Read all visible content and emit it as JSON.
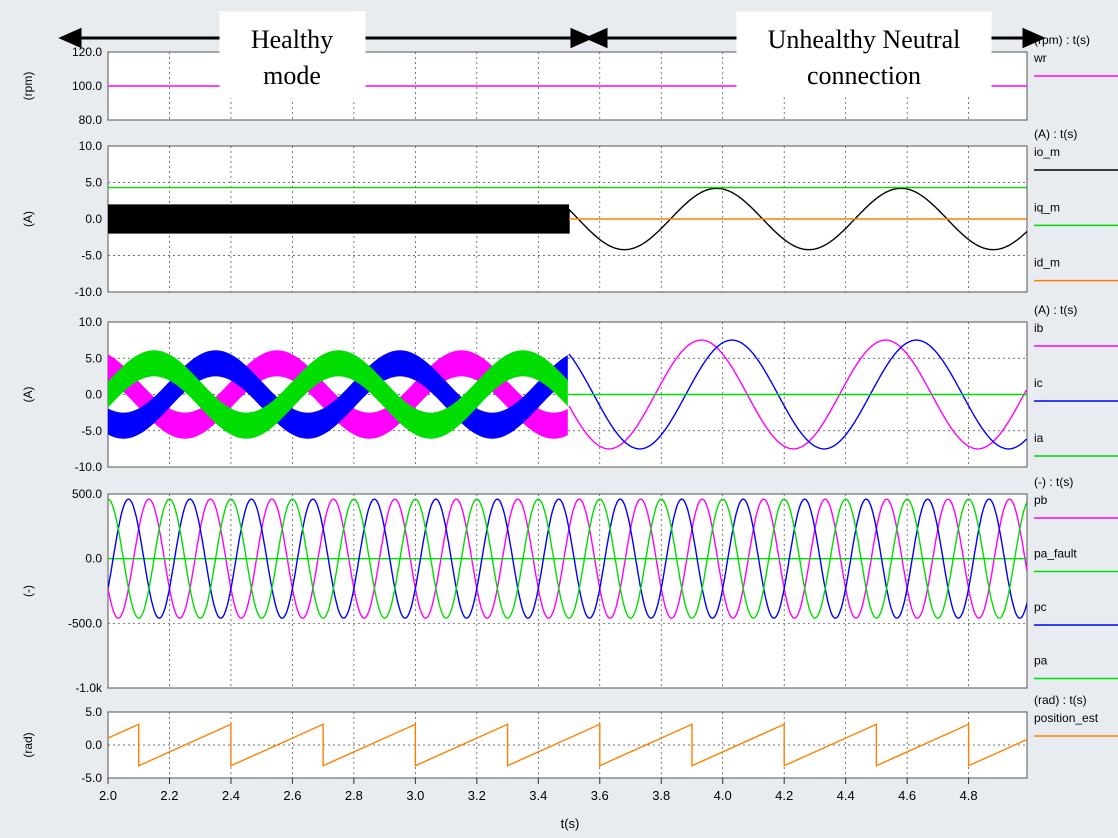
{
  "annotations": {
    "left": {
      "line1": "Healthy",
      "line2": "mode"
    },
    "right": {
      "line1": "Unhealthy Neutral",
      "line2": "connection"
    }
  },
  "x_axis": {
    "label": "t(s)",
    "ticks": [
      "2.0",
      "2.2",
      "2.4",
      "2.6",
      "2.8",
      "3.0",
      "3.2",
      "3.4",
      "3.6",
      "3.8",
      "4.0",
      "4.2",
      "4.4",
      "4.6",
      "4.8"
    ]
  },
  "colors": {
    "magenta": "#ff00ff",
    "black": "#000000",
    "green": "#00dd00",
    "orange": "#ff8000",
    "blue": "#0000ff"
  },
  "chart_data": [
    {
      "type": "line",
      "ylabel": "(rpm)",
      "unit_label": "(rpm) : t(s)",
      "ylim": [
        80,
        120
      ],
      "yticks": [
        "120.0",
        "100.0",
        "80.0"
      ],
      "series": [
        {
          "name": "wr",
          "color": "#ff00ff",
          "x": [
            2.0,
            4.99
          ],
          "y": [
            100,
            100
          ]
        }
      ]
    },
    {
      "type": "line",
      "ylabel": "(A)",
      "unit_label": "(A) : t(s)",
      "ylim": [
        -10,
        10
      ],
      "yticks": [
        "10.0",
        "5.0",
        "0.0",
        "-5.0",
        "-10.0"
      ],
      "healthy_until": 3.5,
      "series": [
        {
          "name": "io_m",
          "color": "#000000",
          "healthy_band": [
            -2,
            2
          ],
          "after": {
            "type": "sine",
            "amplitude": 4.2,
            "period": 0.6,
            "peak_at": 3.98
          }
        },
        {
          "name": "iq_m",
          "color": "#00dd00",
          "x": [
            2.0,
            4.99
          ],
          "y": [
            4.3,
            4.3
          ]
        },
        {
          "name": "id_m",
          "color": "#ff8000",
          "x": [
            3.5,
            4.99
          ],
          "y": [
            0,
            0
          ]
        }
      ]
    },
    {
      "type": "line",
      "ylabel": "(A)",
      "unit_label": "(A) : t(s)",
      "ylim": [
        -10,
        10
      ],
      "yticks": [
        "10.0",
        "5.0",
        "0.0",
        "-5.0",
        "-10.0"
      ],
      "healthy_until": 3.5,
      "series": [
        {
          "name": "ib",
          "color": "#ff00ff",
          "healthy_amplitude": 4.3,
          "band": 1.8,
          "period_healthy": 0.6,
          "after": {
            "type": "sine",
            "amplitude": 7.5,
            "period": 0.6,
            "peak_at": 3.93
          }
        },
        {
          "name": "ic",
          "color": "#0000ff",
          "healthy_amplitude": 4.3,
          "band": 1.8,
          "period_healthy": 0.6,
          "after": {
            "type": "sine",
            "amplitude": 7.5,
            "period": 0.6,
            "peak_at": 4.03
          }
        },
        {
          "name": "ia",
          "color": "#00dd00",
          "healthy_amplitude": 4.3,
          "band": 1.8,
          "period_healthy": 0.6,
          "after": {
            "type": "constant",
            "value": 0
          }
        }
      ]
    },
    {
      "type": "line",
      "ylabel": "(-)",
      "unit_label": "(-) : t(s)",
      "ylim": [
        -1000,
        500
      ],
      "yticks": [
        "500.0",
        "0.0",
        "-500.0",
        "-1.0k"
      ],
      "series": [
        {
          "name": "pb",
          "color": "#ff00ff",
          "amplitude": 460,
          "period": 0.2
        },
        {
          "name": "pa_fault",
          "color": "#00dd00",
          "x": [
            2.0,
            4.99
          ],
          "y": [
            0,
            0
          ]
        },
        {
          "name": "pc",
          "color": "#0000ff",
          "amplitude": 460,
          "period": 0.2
        },
        {
          "name": "pa",
          "color": "#00dd00",
          "amplitude": 460,
          "period": 0.2
        }
      ]
    },
    {
      "type": "line",
      "ylabel": "(rad)",
      "unit_label": "(rad) : t(s)",
      "ylim": [
        -5,
        5
      ],
      "yticks": [
        "5.0",
        "0.0",
        "-5.0"
      ],
      "series": [
        {
          "name": "position_est",
          "color": "#ff8000",
          "type": "sawtooth",
          "min": -3.14,
          "max": 3.14,
          "period": 0.3,
          "wrap_at": 2.1
        }
      ]
    }
  ]
}
